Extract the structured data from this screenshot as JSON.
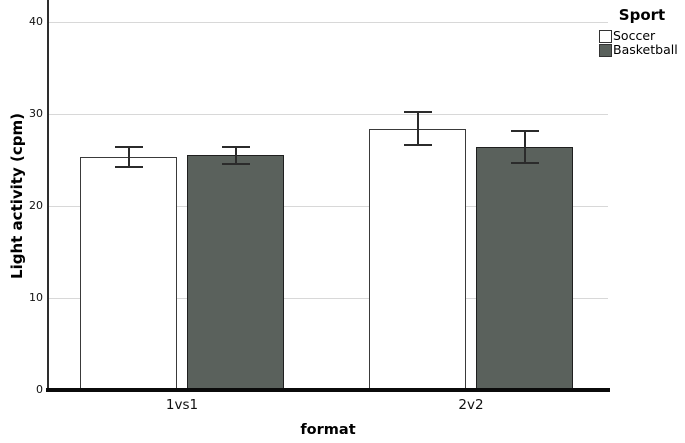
{
  "chart_data": {
    "type": "bar",
    "grouped": true,
    "title": "",
    "categories": [
      "1vs1",
      "2v2"
    ],
    "series": [
      {
        "name": "Soccer",
        "values": [
          25.3,
          28.4
        ],
        "errors": [
          1.2,
          1.9
        ],
        "fill": "#ffffff",
        "border": "#3a3a3a"
      },
      {
        "name": "Basketball",
        "values": [
          25.5,
          26.4
        ],
        "errors": [
          1.05,
          1.85
        ],
        "fill": "#5a615c",
        "border": "#1f1f1f"
      }
    ],
    "xlabel": "format",
    "ylabel": "Light activity (cpm)",
    "yticks": [
      0,
      10,
      20,
      30,
      40
    ],
    "ylim": [
      0,
      42.4
    ],
    "grid": "horizontal",
    "gridcolor": "#d8d8d8",
    "error_bars": true,
    "error_bar_color": "#2b2b2b",
    "legend": {
      "title": "Sport",
      "position": "top-right-outside"
    }
  }
}
